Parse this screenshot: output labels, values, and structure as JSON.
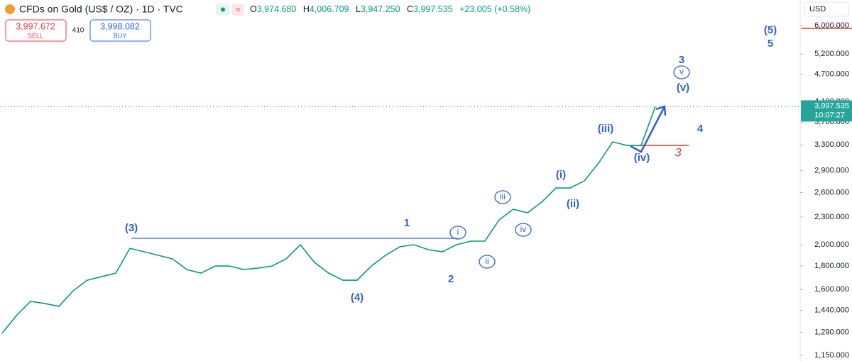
{
  "header": {
    "title": "CFDs on Gold (US$ / OZ) · 1D · TVC",
    "ohlc": [
      {
        "key": "O",
        "value": "3,974.680"
      },
      {
        "key": "H",
        "value": "4,006.709"
      },
      {
        "key": "L",
        "value": "3,947.250"
      },
      {
        "key": "C",
        "value": "3,997.535"
      }
    ],
    "change": "+23.005 (+0.58%)",
    "currency": "USD"
  },
  "trade": {
    "sell_price": "3,997.672",
    "sell": "SELL",
    "spread": "410",
    "buy_price": "3,998.082",
    "buy": "BUY"
  },
  "chart_data": {
    "type": "line",
    "color": "#089981",
    "log_scale": true,
    "values": [
      1284,
      1403,
      1507,
      1491,
      1470,
      1589,
      1676,
      1706,
      1736,
      1966,
      1932,
      1898,
      1865,
      1768,
      1736,
      1799,
      1799,
      1768,
      1780,
      1799,
      1865,
      2002,
      1832,
      1736,
      1676,
      1676,
      1799,
      1898,
      1981,
      2002,
      1953,
      1932,
      2002,
      2038,
      2038,
      2267,
      2391,
      2349,
      2478,
      2660,
      2660,
      2756,
      3012,
      3351,
      3292,
      3292,
      3998
    ],
    "ylim": [
      1118,
      6820
    ],
    "yticks": [
      {
        "value": 1150,
        "label": "1,150.000"
      },
      {
        "value": 1290,
        "label": "1,290.000"
      },
      {
        "value": 1440,
        "label": "1,440.000"
      },
      {
        "value": 1600,
        "label": "1,600.000"
      },
      {
        "value": 1800,
        "label": "1,800.000"
      },
      {
        "value": 2000,
        "label": "2,000.000"
      },
      {
        "value": 2300,
        "label": "2,300.000"
      },
      {
        "value": 2600,
        "label": "2,600.000"
      },
      {
        "value": 2900,
        "label": "2,900.000"
      },
      {
        "value": 3300,
        "label": "3,300.000"
      },
      {
        "value": 3700,
        "label": "3,700.000"
      },
      {
        "value": 4100,
        "label": "4,100.000"
      },
      {
        "value": 4700,
        "label": "4,700.000"
      },
      {
        "value": 5200,
        "label": "5,200.000"
      },
      {
        "value": 6000,
        "label": "6,000.000"
      }
    ],
    "last_price": {
      "value": 3997.535,
      "label": "3,997.535"
    },
    "countdown": "10:07:27",
    "annotations": [
      "(3)",
      "(4)",
      "(5)",
      "5",
      "1",
      "2",
      "3",
      "4",
      "i",
      "ii",
      "iii",
      "iv",
      "v",
      "(i)",
      "(ii)",
      "(iii)",
      "(iv)",
      "(v)",
      "3"
    ]
  }
}
